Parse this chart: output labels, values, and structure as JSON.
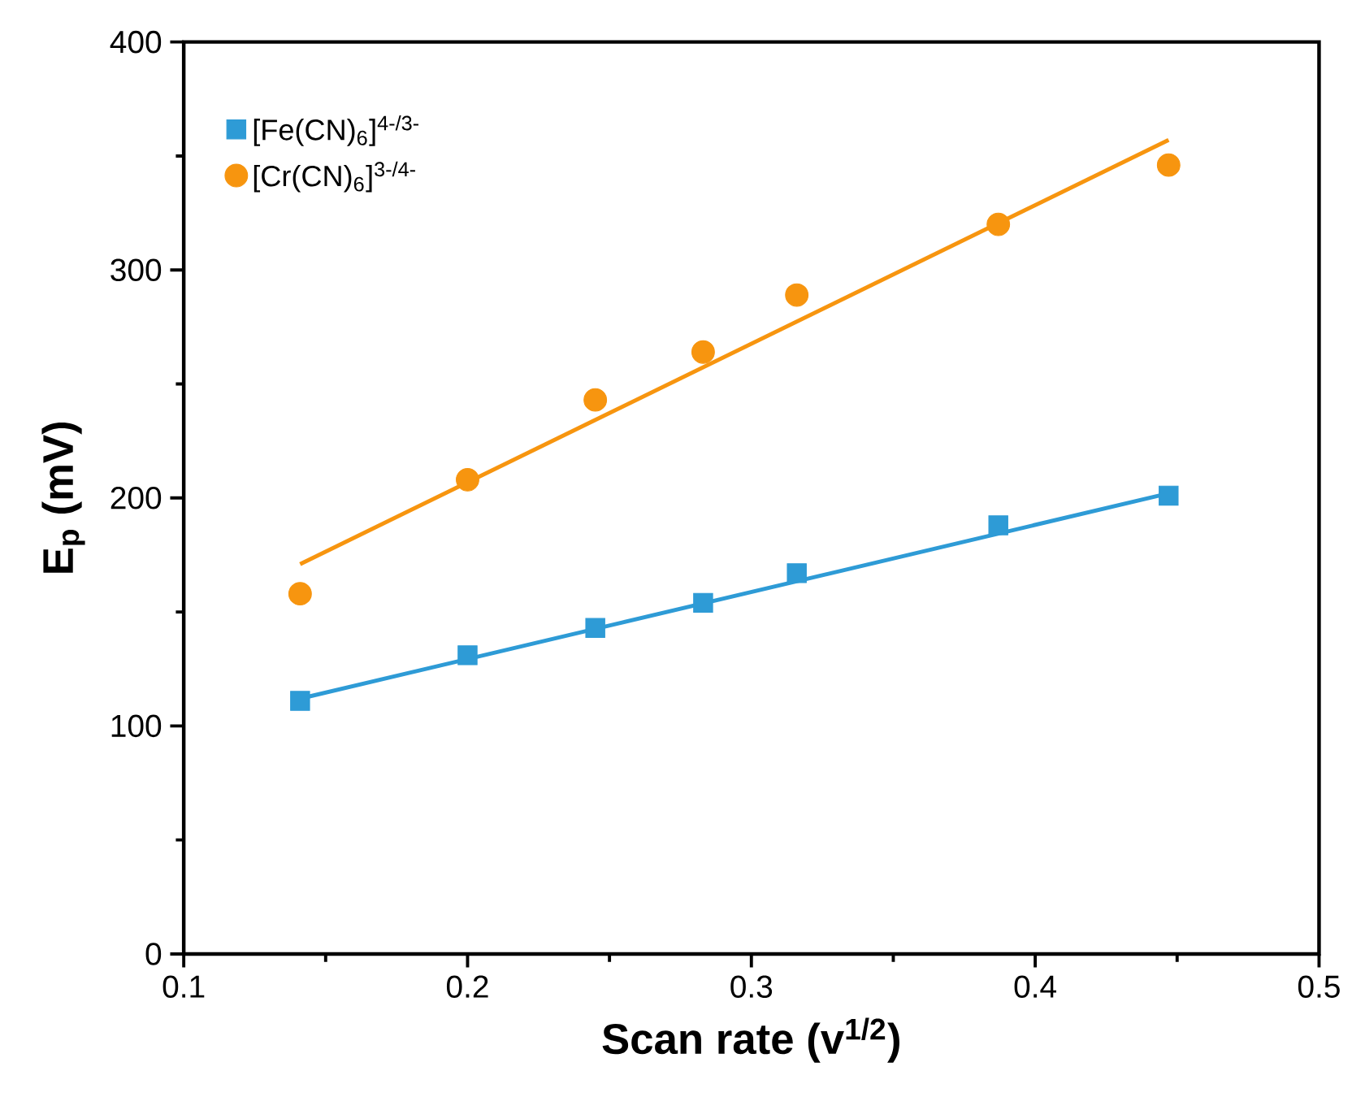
{
  "chart_data": {
    "type": "scatter",
    "xlabel": "Scan rate (v$^{1/2}$)",
    "ylabel": "E$_{p}$ (mV)",
    "xlim": [
      0.1,
      0.5
    ],
    "xticks": [
      0.1,
      0.2,
      0.3,
      0.4,
      0.5
    ],
    "ylim": [
      0,
      400
    ],
    "yticks": [
      0,
      100,
      200,
      300,
      400
    ],
    "legend": "top left",
    "grid": false,
    "series": [
      {
        "name": "[Fe(CN)$_{6}$]$^{4-/3-}$",
        "color": "#2e9bd6",
        "marker": "square",
        "x": [
          0.141,
          0.2,
          0.245,
          0.283,
          0.316,
          0.387,
          0.447
        ],
        "values": [
          111,
          131,
          143,
          154,
          167,
          188,
          201
        ]
      },
      {
        "name": "[Cr(CN)$_{6}$]$^{3-/4-}$",
        "color": "#f7950f",
        "marker": "circle",
        "x": [
          0.141,
          0.2,
          0.245,
          0.283,
          0.316,
          0.387,
          0.447
        ],
        "values": [
          158,
          208,
          243,
          264,
          289,
          320,
          346
        ]
      },
      {
        "type": "line",
        "color": "#2e9bd6",
        "marker": "none",
        "line_style": "solid",
        "x": [
          0.141,
          0.447
        ],
        "values": [
          112,
          202
        ]
      },
      {
        "type": "line",
        "color": "#f7950f",
        "marker": "none",
        "line_style": "solid",
        "x": [
          0.141,
          0.447
        ],
        "values": [
          171,
          357
        ]
      }
    ]
  }
}
